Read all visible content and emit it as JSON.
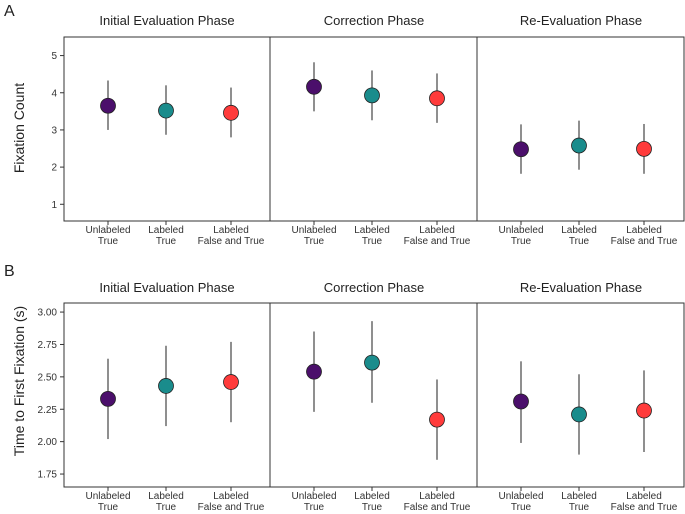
{
  "colors": {
    "Unlabeled True": "#4B0F6B",
    "Labeled True": "#1A8C8C",
    "Labeled False and True": "#FF3B3B"
  },
  "x_tick_lines": [
    [
      "Unlabeled",
      "True"
    ],
    [
      "Labeled",
      "True"
    ],
    [
      "Labeled",
      "False and True"
    ]
  ],
  "chart_data": [
    {
      "panel": "A",
      "type": "scatter",
      "title": "",
      "ylabel": "Fixation Count",
      "ylim": [
        0.55,
        5.5
      ],
      "yticks": [
        1,
        2,
        3,
        4,
        5
      ],
      "ytick_labels": [
        "1",
        "2",
        "3",
        "4",
        "5"
      ],
      "facets": [
        "Initial Evaluation Phase",
        "Correction Phase",
        "Re-Evaluation Phase"
      ],
      "categories": [
        "Unlabeled True",
        "Labeled True",
        "Labeled False and True"
      ],
      "series": [
        {
          "facet": "Initial Evaluation Phase",
          "values": [
            3.65,
            3.52,
            3.46
          ],
          "lower": [
            3.0,
            2.87,
            2.8
          ],
          "upper": [
            4.33,
            4.2,
            4.14
          ]
        },
        {
          "facet": "Correction Phase",
          "values": [
            4.16,
            3.93,
            3.85
          ],
          "lower": [
            3.5,
            3.26,
            3.19
          ],
          "upper": [
            4.82,
            4.6,
            4.52
          ]
        },
        {
          "facet": "Re-Evaluation Phase",
          "values": [
            2.48,
            2.58,
            2.49
          ],
          "lower": [
            1.82,
            1.93,
            1.82
          ],
          "upper": [
            3.15,
            3.25,
            3.16
          ]
        }
      ]
    },
    {
      "panel": "B",
      "type": "scatter",
      "title": "",
      "ylabel": "Time to First Fixation (s)",
      "ylim": [
        1.65,
        3.07
      ],
      "yticks": [
        1.75,
        2.0,
        2.25,
        2.5,
        2.75,
        3.0
      ],
      "ytick_labels": [
        "1.75",
        "2.00",
        "2.25",
        "2.50",
        "2.75",
        "3.00"
      ],
      "facets": [
        "Initial Evaluation Phase",
        "Correction Phase",
        "Re-Evaluation Phase"
      ],
      "categories": [
        "Unlabeled True",
        "Labeled True",
        "Labeled False and True"
      ],
      "series": [
        {
          "facet": "Initial Evaluation Phase",
          "values": [
            2.33,
            2.43,
            2.46
          ],
          "lower": [
            2.02,
            2.12,
            2.15
          ],
          "upper": [
            2.64,
            2.74,
            2.77
          ]
        },
        {
          "facet": "Correction Phase",
          "values": [
            2.54,
            2.61,
            2.17
          ],
          "lower": [
            2.23,
            2.3,
            1.86
          ],
          "upper": [
            2.85,
            2.93,
            2.48
          ]
        },
        {
          "facet": "Re-Evaluation Phase",
          "values": [
            2.31,
            2.21,
            2.24
          ],
          "lower": [
            1.99,
            1.9,
            1.92
          ],
          "upper": [
            2.62,
            2.52,
            2.55
          ]
        }
      ]
    }
  ]
}
